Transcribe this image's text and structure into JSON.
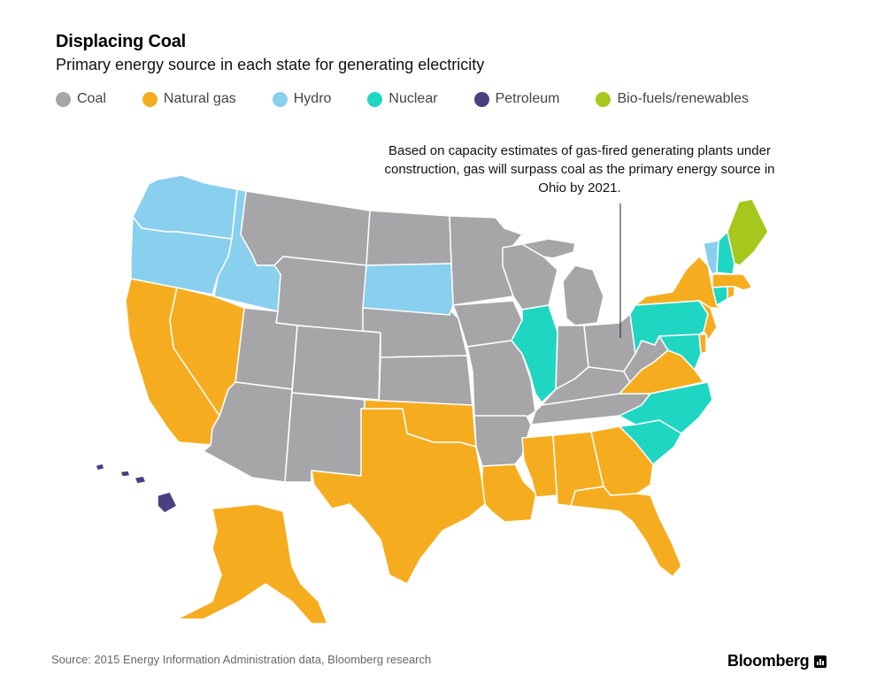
{
  "title": "Displacing Coal",
  "subtitle": "Primary energy source in each state for generating electricity",
  "legend": [
    {
      "label": "Coal",
      "color": "#a6a6a9"
    },
    {
      "label": "Natural gas",
      "color": "#f5ad1f"
    },
    {
      "label": "Hydro",
      "color": "#89cfee"
    },
    {
      "label": "Nuclear",
      "color": "#1fd6c2"
    },
    {
      "label": "Petroleum",
      "color": "#4b3f82"
    },
    {
      "label": "Bio-fuels/renewables",
      "color": "#a6c81c"
    }
  ],
  "annotation": "Based on capacity estimates of gas-fired generating plants under construction, gas will surpass coal as the primary energy source in Ohio by 2021.",
  "source": "Source: 2015 Energy Information Administration data, Bloomberg research",
  "brand": "Bloomberg",
  "map_regions": [
    {
      "source": "Coal",
      "name": "Montana"
    },
    {
      "source": "Coal",
      "name": "Wyoming"
    },
    {
      "source": "Coal",
      "name": "Utah"
    },
    {
      "source": "Coal",
      "name": "Colorado"
    },
    {
      "source": "Coal",
      "name": "Arizona"
    },
    {
      "source": "Coal",
      "name": "New Mexico"
    },
    {
      "source": "Coal",
      "name": "North Dakota"
    },
    {
      "source": "Coal",
      "name": "Nebraska"
    },
    {
      "source": "Coal",
      "name": "Kansas"
    },
    {
      "source": "Coal",
      "name": "Minnesota"
    },
    {
      "source": "Coal",
      "name": "Iowa"
    },
    {
      "source": "Coal",
      "name": "Missouri"
    },
    {
      "source": "Coal",
      "name": "Arkansas"
    },
    {
      "source": "Coal",
      "name": "Wisconsin"
    },
    {
      "source": "Coal",
      "name": "Michigan"
    },
    {
      "source": "Coal",
      "name": "Indiana"
    },
    {
      "source": "Coal",
      "name": "Ohio"
    },
    {
      "source": "Coal",
      "name": "Kentucky"
    },
    {
      "source": "Coal",
      "name": "West Virginia"
    },
    {
      "source": "Coal",
      "name": "Tennessee"
    },
    {
      "source": "Natural gas",
      "name": "California"
    },
    {
      "source": "Natural gas",
      "name": "Nevada"
    },
    {
      "source": "Natural gas",
      "name": "Texas"
    },
    {
      "source": "Natural gas",
      "name": "Oklahoma"
    },
    {
      "source": "Natural gas",
      "name": "Louisiana"
    },
    {
      "source": "Natural gas",
      "name": "Mississippi"
    },
    {
      "source": "Natural gas",
      "name": "Alabama"
    },
    {
      "source": "Natural gas",
      "name": "Georgia"
    },
    {
      "source": "Natural gas",
      "name": "Florida"
    },
    {
      "source": "Natural gas",
      "name": "Virginia"
    },
    {
      "source": "Natural gas",
      "name": "New York"
    },
    {
      "source": "Natural gas",
      "name": "New Jersey"
    },
    {
      "source": "Natural gas",
      "name": "Delaware"
    },
    {
      "source": "Natural gas",
      "name": "Massachusetts"
    },
    {
      "source": "Natural gas",
      "name": "Rhode Island"
    },
    {
      "source": "Natural gas",
      "name": "Alaska"
    },
    {
      "source": "Hydro",
      "name": "Washington"
    },
    {
      "source": "Hydro",
      "name": "Oregon"
    },
    {
      "source": "Hydro",
      "name": "Idaho"
    },
    {
      "source": "Hydro",
      "name": "South Dakota"
    },
    {
      "source": "Hydro",
      "name": "Vermont"
    },
    {
      "source": "Nuclear",
      "name": "Illinois"
    },
    {
      "source": "Nuclear",
      "name": "Pennsylvania"
    },
    {
      "source": "Nuclear",
      "name": "North Carolina"
    },
    {
      "source": "Nuclear",
      "name": "South Carolina"
    },
    {
      "source": "Nuclear",
      "name": "New Hampshire"
    },
    {
      "source": "Nuclear",
      "name": "Connecticut"
    },
    {
      "source": "Nuclear",
      "name": "Maryland"
    },
    {
      "source": "Petroleum",
      "name": "Hawaii"
    },
    {
      "source": "Bio-fuels/renewables",
      "name": "Maine"
    }
  ]
}
